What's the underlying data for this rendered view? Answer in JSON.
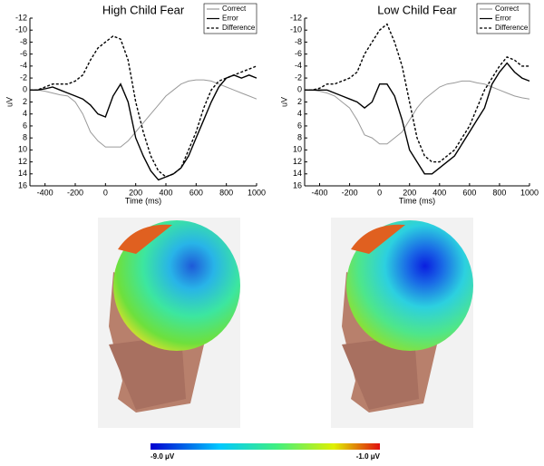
{
  "chart_data": [
    {
      "type": "line",
      "title": "High Child Fear",
      "x_label": "Time (ms)",
      "y_label": "uV",
      "xlim": [
        -500,
        1000
      ],
      "xticks": [
        -400,
        -200,
        0,
        200,
        400,
        600,
        800,
        1000
      ],
      "ylim": [
        16,
        -12
      ],
      "yticks": [
        -12,
        -10,
        -8,
        -6,
        -4,
        -2,
        0,
        2,
        4,
        6,
        8,
        10,
        12,
        14,
        16
      ],
      "legend": "upper right",
      "x": [
        -500,
        -450,
        -400,
        -350,
        -300,
        -250,
        -200,
        -150,
        -100,
        -50,
        0,
        50,
        100,
        150,
        200,
        250,
        300,
        350,
        400,
        450,
        500,
        550,
        600,
        650,
        700,
        750,
        800,
        850,
        900,
        950,
        1000
      ],
      "series": [
        {
          "name": "Correct",
          "color": "#9a9a9a",
          "dash": false,
          "values": [
            0,
            0,
            0.2,
            0.5,
            0.8,
            1,
            2,
            4,
            7,
            8.5,
            9.5,
            9.5,
            9.5,
            8.5,
            7,
            5.5,
            4,
            2.5,
            1,
            0,
            -1,
            -1.5,
            -1.7,
            -1.7,
            -1.5,
            -1,
            -0.5,
            0,
            0.5,
            1,
            1.5
          ]
        },
        {
          "name": "Error",
          "color": "#000000",
          "dash": false,
          "values": [
            0,
            0,
            -0.2,
            -0.5,
            0,
            0.5,
            1,
            1.5,
            2.5,
            4,
            4.5,
            1,
            -1,
            2,
            8,
            11,
            13.5,
            15,
            14.5,
            14,
            13,
            11,
            8,
            5,
            2,
            -0.5,
            -2,
            -2.5,
            -2,
            -2.5,
            -2
          ]
        },
        {
          "name": "Difference",
          "color": "#000000",
          "dash": true,
          "values": [
            0,
            0,
            -0.5,
            -1,
            -1,
            -1,
            -1.5,
            -2.5,
            -5,
            -7,
            -8,
            -9,
            -8.5,
            -5,
            2,
            7,
            11,
            13.5,
            14.5,
            14,
            13,
            10,
            7,
            3,
            0,
            -1.5,
            -2,
            -2.5,
            -3,
            -3.5,
            -4
          ]
        }
      ]
    },
    {
      "type": "line",
      "title": "Low Child Fear",
      "x_label": "Time (ms)",
      "y_label": "uV",
      "xlim": [
        -500,
        1000
      ],
      "xticks": [
        -400,
        -200,
        0,
        200,
        400,
        600,
        800,
        1000
      ],
      "ylim": [
        16,
        -12
      ],
      "yticks": [
        -12,
        -10,
        -8,
        -6,
        -4,
        -2,
        0,
        2,
        4,
        6,
        8,
        10,
        12,
        14,
        16
      ],
      "legend": "upper right",
      "x": [
        -500,
        -450,
        -400,
        -350,
        -300,
        -250,
        -200,
        -150,
        -100,
        -50,
        0,
        50,
        100,
        150,
        200,
        250,
        300,
        350,
        400,
        450,
        500,
        550,
        600,
        650,
        700,
        750,
        800,
        850,
        900,
        950,
        1000
      ],
      "series": [
        {
          "name": "Correct",
          "color": "#9a9a9a",
          "dash": false,
          "values": [
            0,
            0,
            0.2,
            0.5,
            1,
            2,
            3,
            5,
            7.5,
            8,
            9,
            9,
            8,
            7,
            5,
            3,
            1.5,
            0.5,
            -0.5,
            -1,
            -1.2,
            -1.5,
            -1.5,
            -1.2,
            -1,
            -0.5,
            0,
            0.5,
            1,
            1.3,
            1.5
          ]
        },
        {
          "name": "Error",
          "color": "#000000",
          "dash": false,
          "values": [
            0,
            0,
            0,
            0,
            0.5,
            1,
            1.5,
            2,
            3,
            2,
            -1,
            -1,
            1,
            5,
            10,
            12,
            14,
            14,
            13,
            12,
            11,
            9,
            7,
            5,
            3,
            -1,
            -3,
            -4.5,
            -3,
            -2,
            -1.5
          ]
        },
        {
          "name": "Difference",
          "color": "#000000",
          "dash": true,
          "values": [
            0,
            0,
            -0.3,
            -1,
            -1,
            -1.5,
            -2,
            -3,
            -6,
            -8,
            -10,
            -11,
            -8,
            -4,
            2,
            8,
            11,
            12,
            12,
            11,
            10,
            8,
            6,
            3,
            0,
            -2,
            -4,
            -5.5,
            -5,
            -4,
            -4
          ]
        }
      ]
    }
  ],
  "colorbar": {
    "min_label": "-9.0 μV",
    "max_label": "-1.0 μV"
  }
}
